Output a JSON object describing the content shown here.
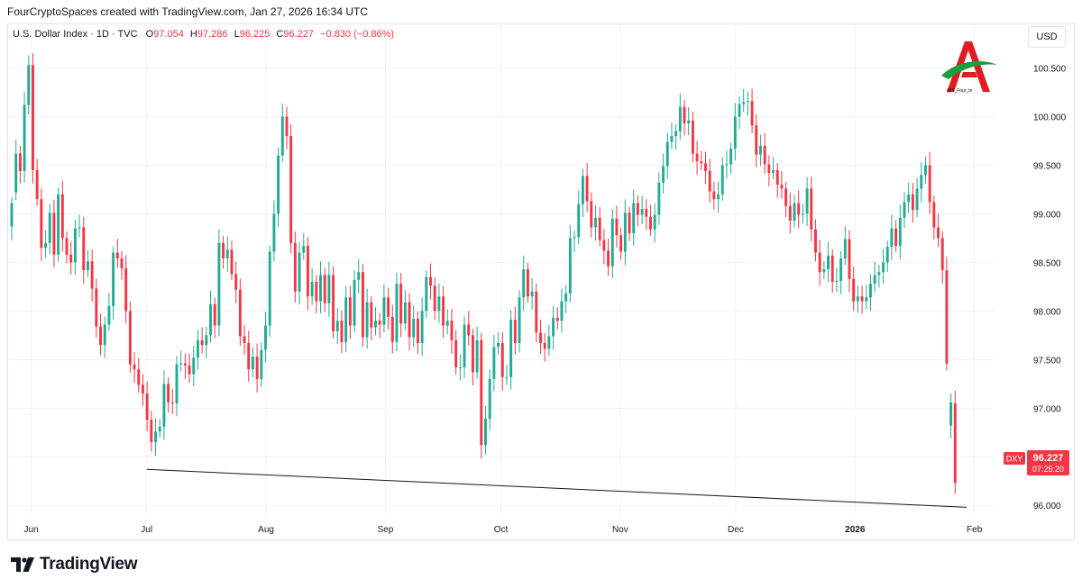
{
  "header": {
    "publisher_line": "FourCryptoSpaces created with TradingView.com, Jan 27, 2026 16:34 UTC"
  },
  "legend": {
    "symbol": "U.S. Dollar Index · 1D · TVC",
    "o_label": "O",
    "o_value": "97.054",
    "h_label": "H",
    "h_value": "97.286",
    "l_label": "L",
    "l_value": "96.225",
    "c_label": "C",
    "c_value": "96.227",
    "change": "−0.830 (−0.86%)"
  },
  "currency_button": "USD",
  "logo_caption": "@X_Four_tv",
  "price_tag": {
    "ticker": "DXY",
    "price": "96.227",
    "countdown": "07:25:20"
  },
  "footer": {
    "brand": "TradingView"
  },
  "colors": {
    "up": "#22ab94",
    "down": "#f23645",
    "grid": "#f0f3fa",
    "text": "#131722"
  },
  "chart_data": {
    "type": "candlestick",
    "ylim": [
      95.9,
      100.95
    ],
    "y_ticks": [
      96.0,
      96.5,
      97.0,
      97.5,
      98.0,
      98.5,
      99.0,
      99.5,
      100.0,
      100.5
    ],
    "y_tick_labels": [
      "96.000",
      "96.500",
      "97.000",
      "97.500",
      "98.000",
      "98.500",
      "99.000",
      "99.500",
      "100.000",
      "100.500"
    ],
    "x_start": "2025-05-26",
    "x_end": "2026-02-06",
    "x_ticks": [
      {
        "date": "2025-06-01",
        "label": "Jun",
        "bold": false
      },
      {
        "date": "2025-07-01",
        "label": "Jul",
        "bold": false
      },
      {
        "date": "2025-08-01",
        "label": "Aug",
        "bold": false
      },
      {
        "date": "2025-09-01",
        "label": "Sep",
        "bold": false
      },
      {
        "date": "2025-10-01",
        "label": "Oct",
        "bold": false
      },
      {
        "date": "2025-11-01",
        "label": "Nov",
        "bold": false
      },
      {
        "date": "2025-12-01",
        "label": "Dec",
        "bold": false
      },
      {
        "date": "2026-01-01",
        "label": "2026",
        "bold": true
      },
      {
        "date": "2026-02-01",
        "label": "Feb",
        "bold": false
      }
    ],
    "trendline": {
      "start": [
        "2025-07-01",
        96.37
      ],
      "end": [
        "2026-01-30",
        95.98
      ]
    },
    "closes": [
      99.11,
      99.62,
      99.44,
      100.12,
      100.53,
      99.45,
      99.15,
      98.65,
      98.7,
      99.01,
      98.58,
      99.2,
      98.75,
      98.58,
      98.5,
      98.85,
      98.86,
      98.42,
      98.51,
      98.23,
      97.84,
      97.65,
      97.86,
      98.05,
      98.6,
      98.54,
      98.44,
      98.0,
      97.45,
      97.4,
      97.24,
      97.15,
      96.88,
      96.65,
      96.76,
      96.81,
      97.25,
      97.06,
      97.05,
      97.45,
      97.46,
      97.44,
      97.35,
      97.52,
      97.7,
      97.65,
      97.75,
      98.07,
      97.85,
      98.7,
      98.54,
      98.63,
      98.38,
      98.22,
      97.74,
      97.67,
      97.4,
      97.53,
      97.3,
      97.6,
      97.85,
      98.61,
      99.0,
      99.6,
      100.0,
      99.8,
      98.7,
      98.2,
      98.6,
      98.67,
      98.15,
      98.3,
      98.1,
      98.37,
      98.08,
      98.37,
      97.79,
      97.9,
      97.68,
      98.14,
      97.85,
      98.32,
      98.4,
      97.73,
      98.09,
      97.83,
      97.9,
      97.86,
      98.14,
      97.94,
      97.68,
      98.28,
      97.87,
      98.09,
      97.73,
      97.92,
      97.67,
      98.0,
      98.35,
      98.26,
      98.0,
      98.15,
      97.85,
      97.9,
      97.7,
      97.42,
      97.42,
      97.86,
      97.75,
      97.37,
      97.7,
      96.62,
      96.89,
      97.3,
      97.63,
      97.67,
      97.32,
      97.32,
      97.91,
      97.67,
      98.14,
      98.43,
      98.15,
      98.2,
      97.78,
      97.67,
      97.61,
      97.74,
      97.93,
      97.9,
      98.1,
      98.18,
      98.75,
      98.76,
      99.1,
      99.39,
      99.13,
      98.86,
      98.96,
      98.73,
      98.62,
      98.46,
      98.95,
      98.78,
      98.61,
      99.01,
      98.8,
      99.11,
      98.99,
      99.05,
      98.97,
      98.84,
      98.99,
      99.32,
      99.49,
      99.74,
      99.8,
      99.85,
      100.1,
      99.93,
      99.96,
      99.62,
      99.54,
      99.52,
      99.44,
      99.23,
      99.15,
      99.2,
      99.5,
      99.51,
      99.67,
      100.0,
      100.13,
      100.15,
      100.16,
      99.91,
      99.61,
      99.7,
      99.51,
      99.42,
      99.45,
      99.3,
      99.26,
      99.08,
      98.93,
      99.11,
      98.99,
      99.0,
      99.26,
      98.84,
      98.6,
      98.4,
      98.43,
      98.57,
      98.3,
      98.31,
      98.54,
      98.74,
      98.33,
      98.1,
      98.15,
      98.1,
      98.14,
      98.28,
      98.37,
      98.4,
      98.5,
      98.66,
      98.85,
      98.67,
      98.96,
      99.12,
      99.2,
      99.04,
      99.26,
      99.4,
      99.5,
      99.12,
      98.86,
      98.75,
      98.42,
      97.46,
      97.06,
      96.23
    ],
    "opens": [
      98.87,
      99.22,
      99.62,
      99.44,
      100.12,
      100.53,
      99.45,
      99.15,
      98.65,
      98.7,
      99.01,
      98.58,
      99.2,
      98.75,
      98.58,
      98.5,
      98.85,
      98.86,
      98.42,
      98.51,
      98.23,
      97.84,
      97.65,
      97.86,
      98.05,
      98.6,
      98.54,
      98.44,
      98.0,
      97.45,
      97.4,
      97.24,
      97.15,
      96.88,
      96.65,
      96.76,
      96.81,
      97.25,
      97.06,
      97.05,
      97.45,
      97.46,
      97.44,
      97.35,
      97.52,
      97.7,
      97.65,
      97.75,
      98.07,
      97.85,
      98.7,
      98.54,
      98.63,
      98.38,
      98.22,
      97.74,
      97.67,
      97.4,
      97.53,
      97.3,
      97.6,
      97.85,
      98.61,
      99.0,
      99.6,
      100.0,
      99.8,
      98.7,
      98.2,
      98.6,
      98.67,
      98.15,
      98.3,
      98.1,
      98.37,
      98.08,
      98.37,
      97.79,
      97.9,
      97.68,
      98.14,
      97.85,
      98.32,
      98.4,
      97.73,
      98.09,
      97.83,
      97.9,
      97.86,
      98.14,
      97.94,
      97.68,
      98.28,
      97.87,
      98.09,
      97.73,
      97.92,
      97.67,
      98.0,
      98.35,
      98.26,
      98.0,
      98.15,
      97.85,
      97.9,
      97.7,
      97.42,
      97.42,
      97.86,
      97.75,
      97.37,
      97.7,
      96.62,
      96.89,
      97.3,
      97.63,
      97.67,
      97.32,
      97.32,
      97.91,
      97.67,
      98.14,
      98.43,
      98.15,
      98.2,
      97.78,
      97.67,
      97.61,
      97.74,
      97.93,
      97.9,
      98.1,
      98.18,
      98.75,
      98.76,
      99.1,
      99.39,
      99.13,
      98.86,
      98.96,
      98.73,
      98.62,
      98.46,
      98.95,
      98.78,
      98.61,
      99.01,
      98.8,
      99.11,
      98.99,
      99.05,
      98.97,
      98.84,
      98.99,
      99.32,
      99.49,
      99.74,
      99.8,
      99.85,
      100.1,
      99.93,
      99.96,
      99.62,
      99.54,
      99.52,
      99.44,
      99.23,
      99.15,
      99.2,
      99.5,
      99.51,
      99.67,
      100.0,
      100.13,
      100.15,
      100.16,
      99.91,
      99.61,
      99.7,
      99.51,
      99.42,
      99.45,
      99.3,
      99.26,
      99.08,
      98.93,
      99.11,
      98.99,
      99.0,
      99.26,
      98.84,
      98.6,
      98.4,
      98.43,
      98.57,
      98.3,
      98.31,
      98.54,
      98.74,
      98.33,
      98.1,
      98.15,
      98.1,
      98.14,
      98.28,
      98.37,
      98.4,
      98.5,
      98.66,
      98.85,
      98.67,
      98.96,
      99.12,
      99.2,
      99.04,
      99.26,
      99.4,
      99.5,
      99.12,
      98.86,
      98.75,
      98.42,
      96.82,
      97.05
    ]
  }
}
